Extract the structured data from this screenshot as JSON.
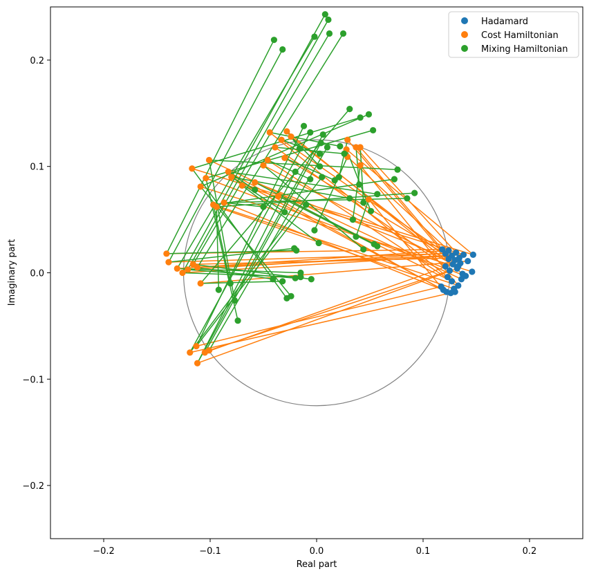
{
  "chart_data": {
    "type": "scatter",
    "title": "",
    "xlabel": "Real part",
    "ylabel": "Imaginary part",
    "xlim": [
      -0.25,
      0.25
    ],
    "ylim": [
      -0.25,
      0.25
    ],
    "xticks": [
      -0.2,
      -0.1,
      0.0,
      0.1,
      0.2
    ],
    "yticks": [
      -0.2,
      -0.1,
      0.0,
      0.1,
      0.2
    ],
    "xtick_labels": [
      "−0.2",
      "−0.1",
      "0.0",
      "0.1",
      "0.2"
    ],
    "ytick_labels": [
      "−0.2",
      "−0.1",
      "0.0",
      "0.1",
      "0.2"
    ],
    "grid": false,
    "legend_position": "top-right",
    "reference_circle": {
      "center": [
        0,
        0
      ],
      "radius": 0.125,
      "color": "#808080"
    },
    "series": [
      {
        "name": "Hadamard",
        "color": "#1f77b4",
        "points": [
          [
            0.118,
            0.022
          ],
          [
            0.121,
            0.018
          ],
          [
            0.124,
            0.021
          ],
          [
            0.127,
            0.016
          ],
          [
            0.131,
            0.019
          ],
          [
            0.134,
            0.014
          ],
          [
            0.138,
            0.017
          ],
          [
            0.142,
            0.011
          ],
          [
            0.147,
            0.017
          ],
          [
            0.146,
            0.001
          ],
          [
            0.14,
            -0.003
          ],
          [
            0.136,
            -0.006
          ],
          [
            0.133,
            -0.012
          ],
          [
            0.129,
            -0.015
          ],
          [
            0.126,
            -0.019
          ],
          [
            0.122,
            -0.018
          ],
          [
            0.119,
            -0.016
          ],
          [
            0.117,
            -0.013
          ],
          [
            0.13,
            -0.018
          ],
          [
            0.132,
            0.004
          ],
          [
            0.128,
            0.008
          ],
          [
            0.125,
            0.002
          ],
          [
            0.123,
            -0.004
          ],
          [
            0.121,
            0.006
          ],
          [
            0.135,
            0.009
          ],
          [
            0.137,
            -0.001
          ],
          [
            0.133,
            0.006
          ],
          [
            0.127,
            -0.008
          ],
          [
            0.13,
            0.012
          ],
          [
            0.124,
            0.013
          ]
        ]
      },
      {
        "name": "Cost Hamiltonian",
        "color": "#ff7f0e",
        "points": [
          [
            -0.141,
            0.018
          ],
          [
            -0.139,
            0.01
          ],
          [
            -0.131,
            0.004
          ],
          [
            -0.126,
            0.0
          ],
          [
            -0.121,
            0.003
          ],
          [
            -0.116,
            0.008
          ],
          [
            -0.112,
            0.005
          ],
          [
            -0.109,
            -0.01
          ],
          [
            -0.117,
            0.098
          ],
          [
            -0.109,
            0.081
          ],
          [
            -0.104,
            0.089
          ],
          [
            -0.101,
            0.106
          ],
          [
            -0.097,
            0.064
          ],
          [
            -0.094,
            0.062
          ],
          [
            -0.087,
            0.066
          ],
          [
            -0.083,
            0.095
          ],
          [
            -0.08,
            0.09
          ],
          [
            -0.113,
            -0.069
          ],
          [
            -0.119,
            -0.075
          ],
          [
            -0.112,
            -0.085
          ],
          [
            -0.105,
            -0.075
          ],
          [
            -0.101,
            -0.073
          ],
          [
            -0.044,
            0.132
          ],
          [
            -0.039,
            0.118
          ],
          [
            -0.033,
            0.125
          ],
          [
            -0.028,
            0.133
          ],
          [
            -0.024,
            0.128
          ],
          [
            -0.046,
            0.106
          ],
          [
            -0.03,
            0.108
          ],
          [
            0.029,
            0.125
          ],
          [
            0.037,
            0.118
          ],
          [
            0.041,
            0.118
          ],
          [
            0.028,
            0.116
          ],
          [
            0.041,
            0.101
          ],
          [
            0.049,
            0.069
          ],
          [
            -0.05,
            0.101
          ],
          [
            -0.058,
            0.085
          ],
          [
            -0.036,
            0.072
          ],
          [
            0.029,
            0.109
          ],
          [
            -0.07,
            0.082
          ]
        ]
      },
      {
        "name": "Mixing Hamiltonian",
        "color": "#2ca02c",
        "points": [
          [
            -0.04,
            0.219
          ],
          [
            -0.032,
            0.21
          ],
          [
            -0.002,
            0.222
          ],
          [
            0.008,
            0.243
          ],
          [
            0.011,
            0.238
          ],
          [
            0.012,
            0.225
          ],
          [
            0.025,
            0.225
          ],
          [
            0.031,
            0.154
          ],
          [
            0.041,
            0.146
          ],
          [
            0.049,
            0.149
          ],
          [
            0.053,
            0.134
          ],
          [
            0.076,
            0.097
          ],
          [
            0.073,
            0.088
          ],
          [
            0.092,
            0.075
          ],
          [
            0.085,
            0.07
          ],
          [
            0.057,
            0.074
          ],
          [
            0.031,
            0.07
          ],
          [
            -0.012,
            0.138
          ],
          [
            -0.006,
            0.132
          ],
          [
            0.006,
            0.13
          ],
          [
            0.004,
            0.122
          ],
          [
            0.01,
            0.118
          ],
          [
            0.022,
            0.119
          ],
          [
            0.026,
            0.112
          ],
          [
            0.003,
            0.112
          ],
          [
            -0.016,
            0.117
          ],
          [
            0.003,
            0.1
          ],
          [
            -0.006,
            0.088
          ],
          [
            0.017,
            0.087
          ],
          [
            0.021,
            0.09
          ],
          [
            0.04,
            0.083
          ],
          [
            0.044,
            0.066
          ],
          [
            0.051,
            0.058
          ],
          [
            0.034,
            0.05
          ],
          [
            0.037,
            0.034
          ],
          [
            0.044,
            0.022
          ],
          [
            0.054,
            0.027
          ],
          [
            0.057,
            0.025
          ],
          [
            -0.002,
            0.04
          ],
          [
            0.002,
            0.028
          ],
          [
            -0.019,
            0.021
          ],
          [
            -0.021,
            0.023
          ],
          [
            -0.015,
            0.0
          ],
          [
            -0.015,
            -0.004
          ],
          [
            -0.02,
            -0.005
          ],
          [
            -0.005,
            -0.006
          ],
          [
            -0.041,
            -0.006
          ],
          [
            -0.032,
            -0.008
          ],
          [
            -0.028,
            -0.024
          ],
          [
            -0.024,
            -0.022
          ],
          [
            -0.074,
            -0.045
          ],
          [
            -0.077,
            -0.026
          ],
          [
            -0.081,
            -0.01
          ],
          [
            -0.092,
            -0.016
          ],
          [
            -0.05,
            0.062
          ],
          [
            -0.058,
            0.078
          ],
          [
            -0.03,
            0.057
          ],
          [
            -0.01,
            0.064
          ],
          [
            0.005,
            0.09
          ],
          [
            -0.02,
            0.095
          ]
        ]
      }
    ],
    "segments": [
      {
        "color": "#ff7f0e",
        "from_series": "Hadamard",
        "to_series": "Cost Hamiltonian",
        "pairs": [
          [
            0,
            0
          ],
          [
            1,
            1
          ],
          [
            2,
            2
          ],
          [
            3,
            3
          ],
          [
            4,
            4
          ],
          [
            5,
            5
          ],
          [
            6,
            6
          ],
          [
            7,
            7
          ],
          [
            8,
            8
          ],
          [
            9,
            9
          ],
          [
            10,
            10
          ],
          [
            11,
            11
          ],
          [
            12,
            12
          ],
          [
            13,
            13
          ],
          [
            14,
            14
          ],
          [
            15,
            15
          ],
          [
            16,
            16
          ],
          [
            17,
            17
          ],
          [
            18,
            18
          ],
          [
            19,
            19
          ],
          [
            20,
            20
          ],
          [
            21,
            21
          ],
          [
            22,
            22
          ],
          [
            23,
            23
          ],
          [
            24,
            24
          ],
          [
            25,
            25
          ],
          [
            26,
            26
          ],
          [
            27,
            27
          ],
          [
            28,
            28
          ],
          [
            29,
            29
          ],
          [
            0,
            30
          ],
          [
            4,
            31
          ],
          [
            8,
            32
          ],
          [
            12,
            33
          ],
          [
            16,
            34
          ],
          [
            20,
            35
          ],
          [
            24,
            36
          ],
          [
            27,
            37
          ],
          [
            2,
            38
          ],
          [
            6,
            39
          ]
        ]
      },
      {
        "color": "#2ca02c",
        "from_series": "Cost Hamiltonian",
        "to_series": "Mixing Hamiltonian",
        "pairs": [
          [
            0,
            0
          ],
          [
            1,
            1
          ],
          [
            2,
            2
          ],
          [
            3,
            3
          ],
          [
            4,
            4
          ],
          [
            5,
            5
          ],
          [
            6,
            6
          ],
          [
            7,
            7
          ],
          [
            8,
            8
          ],
          [
            9,
            9
          ],
          [
            10,
            10
          ],
          [
            11,
            11
          ],
          [
            12,
            12
          ],
          [
            13,
            13
          ],
          [
            14,
            14
          ],
          [
            15,
            15
          ],
          [
            16,
            16
          ],
          [
            17,
            17
          ],
          [
            18,
            18
          ],
          [
            19,
            19
          ],
          [
            20,
            20
          ],
          [
            21,
            21
          ],
          [
            22,
            22
          ],
          [
            23,
            23
          ],
          [
            24,
            24
          ],
          [
            25,
            25
          ],
          [
            26,
            26
          ],
          [
            27,
            27
          ],
          [
            28,
            28
          ],
          [
            29,
            29
          ],
          [
            30,
            30
          ],
          [
            31,
            31
          ],
          [
            32,
            32
          ],
          [
            33,
            33
          ],
          [
            34,
            34
          ],
          [
            35,
            35
          ],
          [
            36,
            36
          ],
          [
            37,
            37
          ],
          [
            38,
            38
          ],
          [
            39,
            39
          ],
          [
            0,
            40
          ],
          [
            1,
            41
          ],
          [
            2,
            42
          ],
          [
            3,
            43
          ],
          [
            4,
            44
          ],
          [
            5,
            45
          ],
          [
            6,
            46
          ],
          [
            7,
            47
          ],
          [
            8,
            48
          ],
          [
            9,
            49
          ],
          [
            10,
            50
          ],
          [
            11,
            51
          ],
          [
            12,
            52
          ],
          [
            13,
            53
          ],
          [
            14,
            54
          ],
          [
            15,
            55
          ],
          [
            16,
            56
          ],
          [
            17,
            57
          ],
          [
            18,
            58
          ],
          [
            19,
            59
          ]
        ]
      }
    ]
  }
}
